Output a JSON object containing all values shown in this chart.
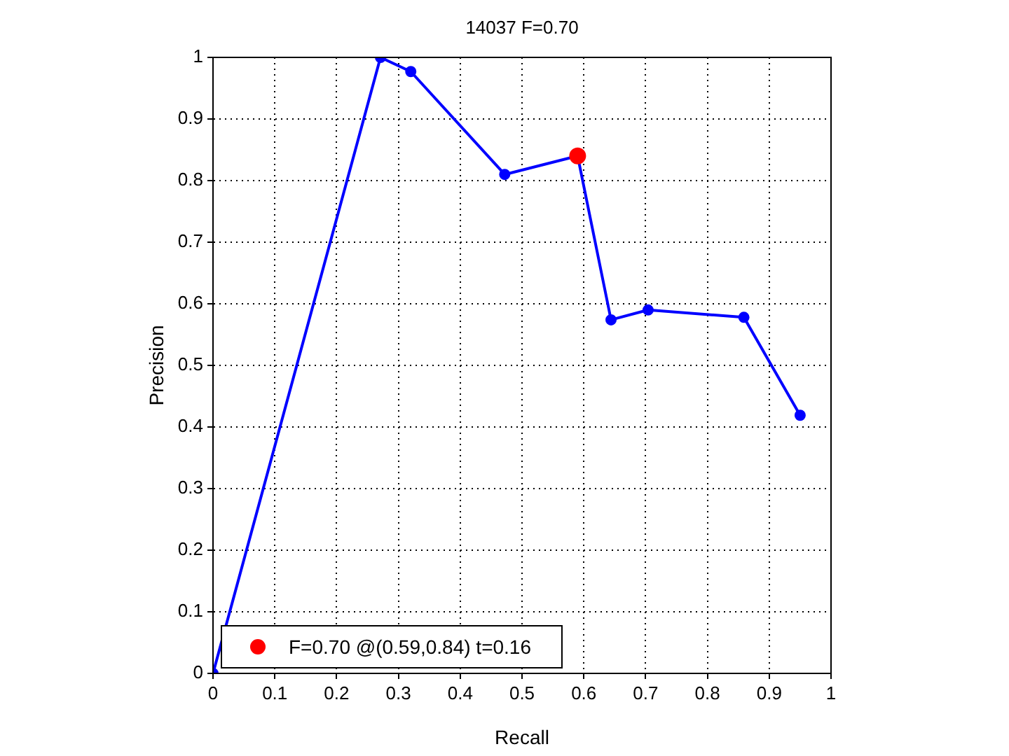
{
  "chart_data": {
    "type": "line",
    "title": "14037 F=0.70",
    "xlabel": "Recall",
    "ylabel": "Precision",
    "xlim": [
      0,
      1
    ],
    "ylim": [
      0,
      1
    ],
    "xticks": [
      0,
      0.1,
      0.2,
      0.3,
      0.4,
      0.5,
      0.6,
      0.7,
      0.8,
      0.9,
      1
    ],
    "yticks": [
      0,
      0.1,
      0.2,
      0.3,
      0.4,
      0.5,
      0.6,
      0.7,
      0.8,
      0.9,
      1
    ],
    "grid": true,
    "legend": "bottom left",
    "marker": "circle",
    "line_style": "solid",
    "series": [
      {
        "color": "#0000ff",
        "x": [
          0,
          0.271,
          0.32,
          0.472,
          0.59,
          0.644,
          0.704,
          0.859,
          0.95
        ],
        "values": [
          0,
          1,
          0.977,
          0.81,
          0.84,
          0.574,
          0.59,
          0.578,
          0.419
        ]
      },
      {
        "type": "scatter",
        "name": "F=0.70 @(0.59,0.84) t=0.16",
        "color": "#ff0000",
        "x": [
          0.59
        ],
        "values": [
          0.84
        ]
      }
    ]
  }
}
